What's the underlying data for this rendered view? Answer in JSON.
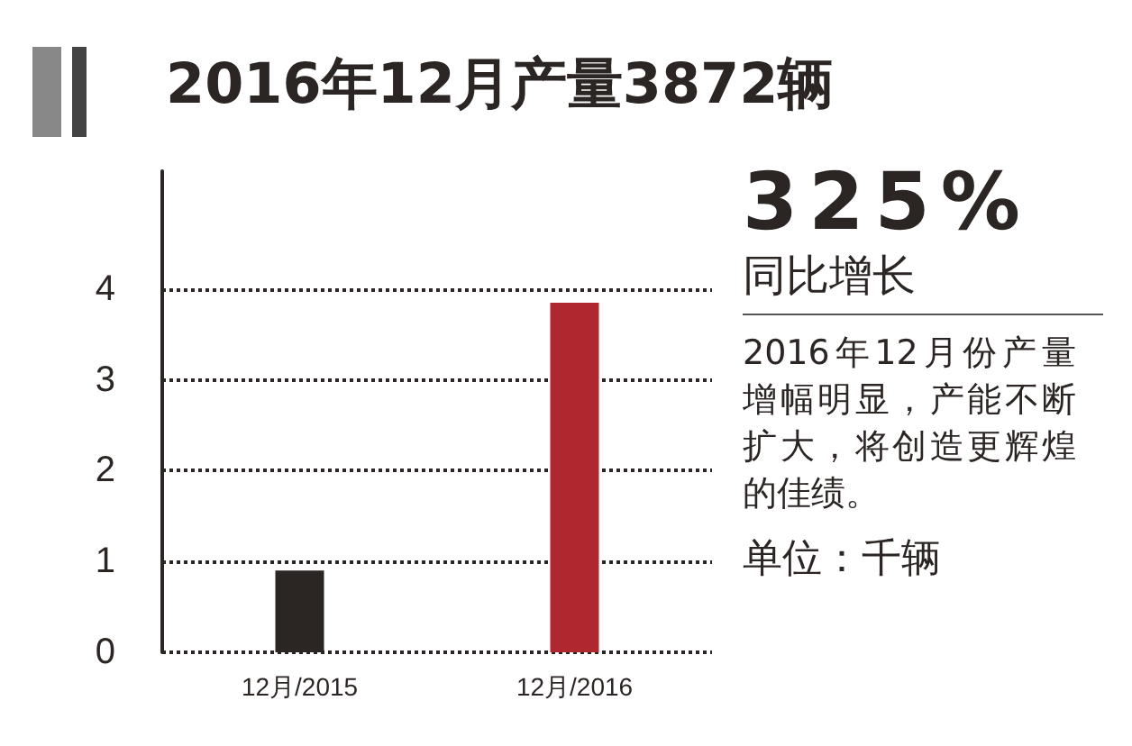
{
  "chart_data": {
    "type": "bar",
    "title": "2016年12月产量3872辆",
    "categories": [
      "12月/2015",
      "12月/2016"
    ],
    "values": [
      0.9,
      3.85
    ],
    "colors": [
      "#2b2523",
      "#b0282f"
    ],
    "ylim": [
      0,
      5.3
    ],
    "yticks": [
      0,
      1,
      2,
      3,
      4
    ],
    "grid": "y",
    "annotations": [
      "325%",
      "同比增长",
      "2016年12月份产量增幅明显，产能不断扩大，将创造更辉煌的佳绩。",
      "单位：千辆"
    ]
  }
}
